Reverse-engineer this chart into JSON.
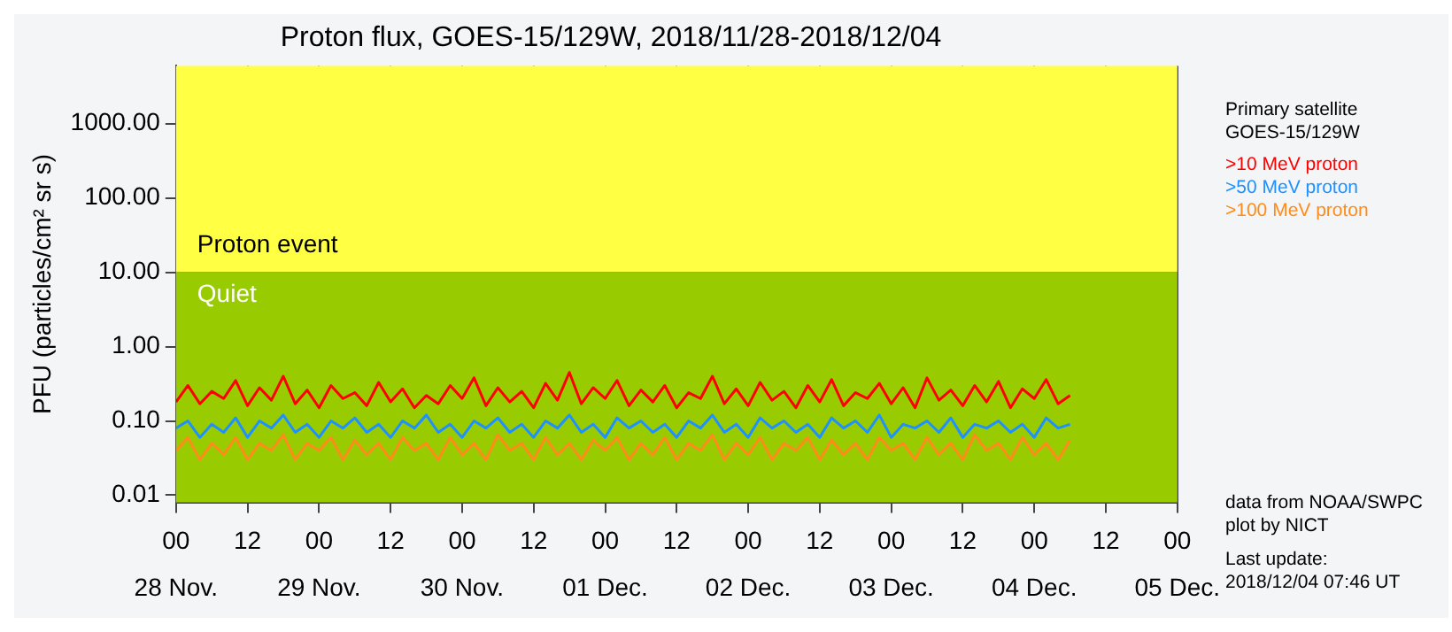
{
  "chart_data": {
    "type": "line",
    "title": "Proton flux, GOES-15/129W, 2018/11/28-2018/12/04",
    "ylabel": "PFU (particles/cm² sr s)",
    "legend_title": "Primary satellite GOES-15/129W",
    "x": [
      "2018-11-28T00:00",
      "2018-11-28T02:00",
      "2018-11-28T04:00",
      "2018-11-28T06:00",
      "2018-11-28T08:00",
      "2018-11-28T10:00",
      "2018-11-28T12:00",
      "2018-11-28T14:00",
      "2018-11-28T16:00",
      "2018-11-28T18:00",
      "2018-11-28T20:00",
      "2018-11-28T22:00",
      "2018-11-29T00:00",
      "2018-11-29T02:00",
      "2018-11-29T04:00",
      "2018-11-29T06:00",
      "2018-11-29T08:00",
      "2018-11-29T10:00",
      "2018-11-29T12:00",
      "2018-11-29T14:00",
      "2018-11-29T16:00",
      "2018-11-29T18:00",
      "2018-11-29T20:00",
      "2018-11-29T22:00",
      "2018-11-30T00:00",
      "2018-11-30T02:00",
      "2018-11-30T04:00",
      "2018-11-30T06:00",
      "2018-11-30T08:00",
      "2018-11-30T10:00",
      "2018-11-30T12:00",
      "2018-11-30T14:00",
      "2018-11-30T16:00",
      "2018-11-30T18:00",
      "2018-11-30T20:00",
      "2018-11-30T22:00",
      "2018-12-01T00:00",
      "2018-12-01T02:00",
      "2018-12-01T04:00",
      "2018-12-01T06:00",
      "2018-12-01T08:00",
      "2018-12-01T10:00",
      "2018-12-01T12:00",
      "2018-12-01T14:00",
      "2018-12-01T16:00",
      "2018-12-01T18:00",
      "2018-12-01T20:00",
      "2018-12-01T22:00",
      "2018-12-02T00:00",
      "2018-12-02T02:00",
      "2018-12-02T04:00",
      "2018-12-02T06:00",
      "2018-12-02T08:00",
      "2018-12-02T10:00",
      "2018-12-02T12:00",
      "2018-12-02T14:00",
      "2018-12-02T16:00",
      "2018-12-02T18:00",
      "2018-12-02T20:00",
      "2018-12-02T22:00",
      "2018-12-03T00:00",
      "2018-12-03T02:00",
      "2018-12-03T04:00",
      "2018-12-03T06:00",
      "2018-12-03T08:00",
      "2018-12-03T10:00",
      "2018-12-03T12:00",
      "2018-12-03T14:00",
      "2018-12-03T16:00",
      "2018-12-03T18:00",
      "2018-12-03T20:00",
      "2018-12-03T22:00",
      "2018-12-04T00:00",
      "2018-12-04T02:00",
      "2018-12-04T04:00",
      "2018-12-04T06:00"
    ],
    "series": [
      {
        "name": ">10 MeV proton",
        "color": "#ff0000",
        "values": [
          0.18,
          0.3,
          0.17,
          0.25,
          0.2,
          0.35,
          0.16,
          0.28,
          0.19,
          0.4,
          0.17,
          0.26,
          0.15,
          0.3,
          0.2,
          0.24,
          0.16,
          0.33,
          0.18,
          0.27,
          0.15,
          0.22,
          0.17,
          0.3,
          0.2,
          0.38,
          0.16,
          0.28,
          0.18,
          0.25,
          0.15,
          0.32,
          0.19,
          0.45,
          0.17,
          0.28,
          0.2,
          0.35,
          0.16,
          0.26,
          0.18,
          0.3,
          0.15,
          0.24,
          0.2,
          0.4,
          0.17,
          0.27,
          0.16,
          0.33,
          0.19,
          0.25,
          0.15,
          0.3,
          0.18,
          0.36,
          0.16,
          0.24,
          0.2,
          0.32,
          0.17,
          0.28,
          0.15,
          0.38,
          0.19,
          0.26,
          0.16,
          0.3,
          0.18,
          0.34,
          0.15,
          0.27,
          0.2,
          0.36,
          0.17,
          0.22
        ]
      },
      {
        "name": ">50 MeV proton",
        "color": "#1e90ff",
        "values": [
          0.08,
          0.1,
          0.06,
          0.09,
          0.07,
          0.11,
          0.06,
          0.1,
          0.08,
          0.12,
          0.07,
          0.09,
          0.06,
          0.1,
          0.08,
          0.11,
          0.07,
          0.09,
          0.06,
          0.1,
          0.08,
          0.12,
          0.07,
          0.09,
          0.06,
          0.1,
          0.08,
          0.11,
          0.07,
          0.09,
          0.06,
          0.1,
          0.08,
          0.12,
          0.07,
          0.09,
          0.06,
          0.11,
          0.08,
          0.1,
          0.07,
          0.09,
          0.06,
          0.1,
          0.08,
          0.12,
          0.07,
          0.09,
          0.06,
          0.11,
          0.08,
          0.1,
          0.07,
          0.09,
          0.06,
          0.11,
          0.08,
          0.1,
          0.07,
          0.12,
          0.06,
          0.09,
          0.08,
          0.1,
          0.07,
          0.11,
          0.06,
          0.09,
          0.08,
          0.1,
          0.07,
          0.09,
          0.06,
          0.11,
          0.08,
          0.09
        ]
      },
      {
        "name": ">100 MeV proton",
        "color": "#ff8c1a",
        "values": [
          0.04,
          0.06,
          0.03,
          0.05,
          0.035,
          0.06,
          0.03,
          0.05,
          0.04,
          0.065,
          0.03,
          0.05,
          0.04,
          0.06,
          0.03,
          0.055,
          0.035,
          0.05,
          0.03,
          0.06,
          0.04,
          0.05,
          0.03,
          0.06,
          0.035,
          0.05,
          0.03,
          0.065,
          0.04,
          0.05,
          0.03,
          0.06,
          0.035,
          0.05,
          0.03,
          0.055,
          0.04,
          0.06,
          0.03,
          0.05,
          0.035,
          0.06,
          0.03,
          0.05,
          0.04,
          0.065,
          0.03,
          0.05,
          0.035,
          0.06,
          0.03,
          0.05,
          0.04,
          0.06,
          0.03,
          0.055,
          0.035,
          0.05,
          0.03,
          0.06,
          0.04,
          0.05,
          0.03,
          0.06,
          0.035,
          0.05,
          0.03,
          0.065,
          0.04,
          0.05,
          0.03,
          0.06,
          0.035,
          0.05,
          0.03,
          0.055
        ]
      }
    ],
    "xlim": [
      "2018-11-28T00:00",
      "2018-12-05T00:00"
    ],
    "xticks": [
      {
        "value": "2018-11-28T00:00",
        "label": "00\n28 Nov."
      },
      {
        "value": "2018-11-28T12:00",
        "label": "12"
      },
      {
        "value": "2018-11-29T00:00",
        "label": "00\n29 Nov."
      },
      {
        "value": "2018-11-29T12:00",
        "label": "12"
      },
      {
        "value": "2018-11-30T00:00",
        "label": "00\n30 Nov."
      },
      {
        "value": "2018-11-30T12:00",
        "label": "12"
      },
      {
        "value": "2018-12-01T00:00",
        "label": "00\n01 Dec."
      },
      {
        "value": "2018-12-01T12:00",
        "label": "12"
      },
      {
        "value": "2018-12-02T00:00",
        "label": "00\n02 Dec."
      },
      {
        "value": "2018-12-02T12:00",
        "label": "12"
      },
      {
        "value": "2018-12-03T00:00",
        "label": "00\n03 Dec."
      },
      {
        "value": "2018-12-03T12:00",
        "label": "12"
      },
      {
        "value": "2018-12-04T00:00",
        "label": "00\n04 Dec."
      },
      {
        "value": "2018-12-04T12:00",
        "label": "12"
      },
      {
        "value": "2018-12-05T00:00",
        "label": "00\n05 Dec."
      }
    ],
    "ylim": [
      0.008,
      6000
    ],
    "yticks": [
      {
        "value": 0.01,
        "label": "0.01"
      },
      {
        "value": 0.1,
        "label": "0.10"
      },
      {
        "value": 1,
        "label": "1.00"
      },
      {
        "value": 10,
        "label": "10.00"
      },
      {
        "value": 100,
        "label": "100.00"
      },
      {
        "value": 1000,
        "label": "1000.00"
      }
    ],
    "log": "y",
    "grid": true,
    "legend": "top right",
    "marker": "none",
    "line_style": "solid",
    "bands": [
      {
        "axis": "y",
        "from": 10,
        "to": 6000,
        "label": "Proton event",
        "color": "#ffff44"
      },
      {
        "axis": "y",
        "from": 0.008,
        "to": 10,
        "label": "Quiet",
        "color": "#99cc00"
      }
    ],
    "annotations": [
      "data from NOAA/SWPC",
      "plot by NICT",
      "Last update: 2018/12/04 07:46 UT"
    ]
  }
}
